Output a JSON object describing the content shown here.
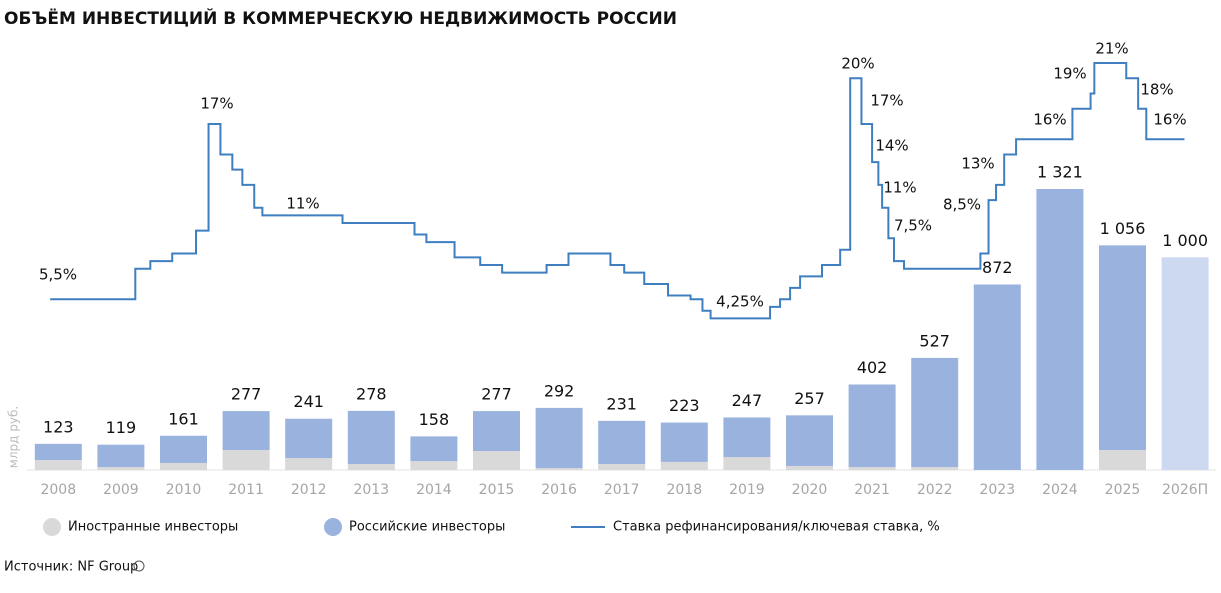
{
  "chart_data": {
    "type": "bar",
    "stacked": true,
    "title": "ОБЪЁМ ИНВЕСТИЦИЙ В КОММЕРЧЕСКУЮ НЕДВИЖИМОСТЬ РОССИИ",
    "y_label": "млрд руб.",
    "source": "Источник: NF Group",
    "categories": [
      "2008",
      "2009",
      "2010",
      "2011",
      "2012",
      "2013",
      "2014",
      "2015",
      "2016",
      "2017",
      "2018",
      "2019",
      "2020",
      "2021",
      "2022",
      "2023",
      "2024",
      "2025",
      "2026П"
    ],
    "ylim": [
      0,
      2200
    ],
    "xlim": [
      2007.5,
      2026.5
    ],
    "y2lim": [
      -5.7,
      25
    ],
    "series": [
      {
        "name": "Иностранные инвесторы",
        "color": "#d9d9d9",
        "values": [
          47,
          14,
          33,
          94,
          56,
          28,
          42,
          89,
          9,
          28,
          38,
          61,
          19,
          14,
          14,
          0,
          0,
          94,
          0
        ]
      },
      {
        "name": "Российские инвесторы",
        "color": "#9ab3de",
        "values": [
          76,
          105,
          128,
          183,
          185,
          250,
          116,
          188,
          283,
          203,
          185,
          186,
          238,
          388,
          513,
          872,
          1321,
          962,
          1000
        ],
        "colors": [
          "#9ab3de",
          "#9ab3de",
          "#9ab3de",
          "#9ab3de",
          "#9ab3de",
          "#9ab3de",
          "#9ab3de",
          "#9ab3de",
          "#9ab3de",
          "#9ab3de",
          "#9ab3de",
          "#9ab3de",
          "#9ab3de",
          "#9ab3de",
          "#9ab3de",
          "#9ab3de",
          "#9ab3de",
          "#9ab3de",
          "#cdd9f0"
        ]
      },
      {
        "name": "Ставка рефинансирования/ключевая ставка, %",
        "color": "#3f7fc0",
        "type": "line",
        "axis": "y2",
        "step": "post",
        "x": [
          2007.87,
          2009.23,
          2009.47,
          2009.82,
          2010.2,
          2010.4,
          2010.59,
          2010.78,
          2010.94,
          2011.13,
          2011.26,
          2012.54,
          2013.69,
          2013.88,
          2014.33,
          2014.74,
          2015.09,
          2015.8,
          2016.15,
          2016.82,
          2017.04,
          2017.36,
          2017.74,
          2018.1,
          2018.29,
          2018.42,
          2019.37,
          2019.53,
          2019.69,
          2019.85,
          2020.2,
          2020.49,
          2020.65,
          2020.83,
          2021.0,
          2021.1,
          2021.16,
          2021.26,
          2021.35,
          2021.51,
          2022.73,
          2022.86,
          2022.98,
          2023.11,
          2023.3,
          2024.2,
          2024.49,
          2024.55,
          2025.06,
          2025.25,
          2025.38,
          2025.99
        ],
        "values": [
          5.5,
          7.5,
          8,
          8.5,
          10,
          17,
          15,
          14,
          13,
          11.5,
          11,
          10.5,
          9.75,
          9.25,
          8.25,
          7.75,
          7.25,
          7.75,
          8.5,
          7.75,
          7.25,
          6.5,
          5.75,
          5.5,
          4.75,
          4.25,
          5,
          5.5,
          6.25,
          7,
          7.75,
          8.75,
          20,
          17,
          14.5,
          13,
          11.5,
          9.5,
          8,
          7.5,
          8.5,
          12,
          13,
          15,
          16,
          18,
          19,
          21,
          20,
          18,
          16,
          16
        ]
      }
    ],
    "totals": {
      "values": [
        123,
        119,
        161,
        277,
        241,
        278,
        158,
        277,
        292,
        231,
        223,
        247,
        257,
        402,
        527,
        872,
        1321,
        1056,
        1000
      ],
      "value_labels": [
        "123",
        "119",
        "161",
        "277",
        "241",
        "278",
        "158",
        "277",
        "292",
        "231",
        "223",
        "247",
        "257",
        "402",
        "527",
        "872",
        "1 321",
        "1 056",
        "1 000"
      ]
    },
    "annotations": [
      "5,5%",
      "17%",
      "11%",
      "4,25%",
      "20%",
      "17%",
      "14%",
      "11%",
      "7,5%",
      "8,5%",
      "13%",
      "16%",
      "19%",
      "21%",
      "18%",
      "16%"
    ]
  }
}
